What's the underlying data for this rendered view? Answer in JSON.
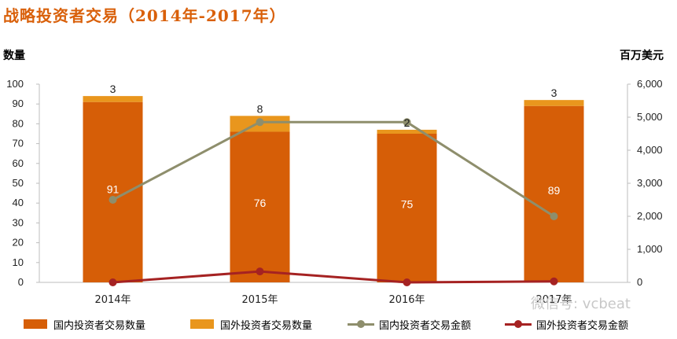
{
  "header": {
    "title": "战略投资者交易（2014年-2017年）"
  },
  "axes": {
    "left_unit": "数量",
    "right_unit": "百万美元"
  },
  "watermark": "微信号: vcbeat",
  "colors": {
    "domestic_count": "#d65e07",
    "foreign_count": "#e9961d",
    "domestic_amount": "#8e8e6c",
    "foreign_amount": "#a52222"
  },
  "chart_data": {
    "type": "bar",
    "categories": [
      "2014年",
      "2015年",
      "2016年",
      "2017年"
    ],
    "series": [
      {
        "name": "国内投资者交易数量",
        "type": "bar",
        "stack": "count",
        "axis": "left",
        "values": [
          91,
          76,
          75,
          89
        ]
      },
      {
        "name": "国外投资者交易数量",
        "type": "bar",
        "stack": "count",
        "axis": "left",
        "values": [
          3,
          8,
          2,
          3
        ]
      },
      {
        "name": "国内投资者交易金额",
        "type": "line",
        "axis": "right",
        "values": [
          2500,
          4850,
          4850,
          2000
        ]
      },
      {
        "name": "国外投资者交易金额",
        "type": "line",
        "axis": "right",
        "values": [
          0,
          330,
          0,
          30
        ]
      }
    ],
    "ylabel": "数量",
    "y2label": "百万美元",
    "ylim": [
      0,
      100
    ],
    "y2lim": [
      0,
      6000
    ],
    "yticks": [
      "0",
      "10",
      "20",
      "30",
      "40",
      "50",
      "60",
      "70",
      "80",
      "90",
      "100"
    ],
    "y2ticks": [
      "0",
      "1,000",
      "2,000",
      "3,000",
      "4,000",
      "5,000",
      "6,000"
    ],
    "legend": "bottom"
  }
}
